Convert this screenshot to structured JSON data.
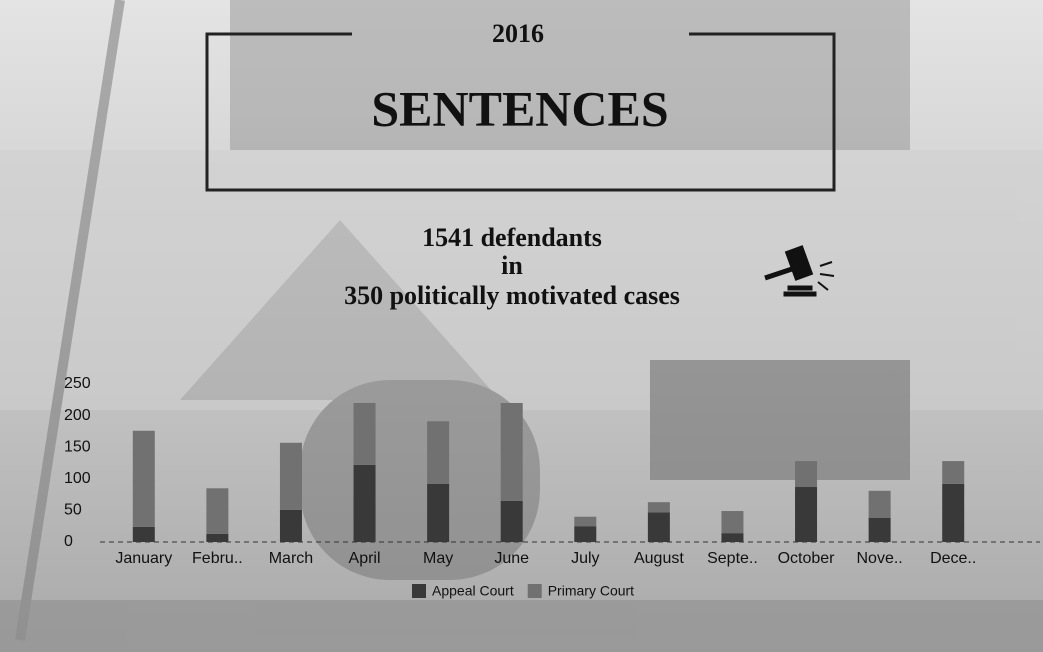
{
  "chart_data": {
    "type": "stacked_bar",
    "year": "2016",
    "title": "SENTENCES",
    "subtitle": [
      "1541 defendants",
      "in",
      "350 politically motivated cases"
    ],
    "categories": [
      "January",
      "Febru..",
      "March",
      "April",
      "May",
      "June",
      "July",
      "August",
      "Septe..",
      "October",
      "Nove..",
      "Dece.."
    ],
    "series": [
      {
        "name": "Appeal Court",
        "color": "#393939",
        "values": [
          24,
          13,
          51,
          122,
          92,
          65,
          25,
          47,
          14,
          87,
          38,
          92
        ]
      },
      {
        "name": "Primary Court",
        "color": "#717171",
        "values": [
          152,
          72,
          106,
          98,
          99,
          155,
          15,
          16,
          35,
          41,
          43,
          36
        ]
      }
    ],
    "ylim": [
      0,
      250
    ],
    "yticks": [
      0,
      50,
      100,
      150,
      200,
      250
    ],
    "grid": false,
    "legend": "bottom"
  }
}
